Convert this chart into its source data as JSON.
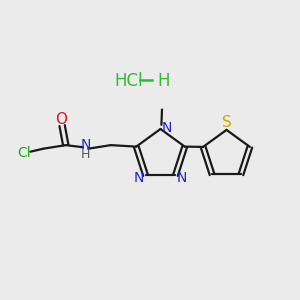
{
  "background_color": "#ebebeb",
  "hcl_color": "#33bb33",
  "hcl_fontsize": 12,
  "bond_color": "#1a1a1a",
  "bond_lw": 1.6,
  "atom_colors": {
    "Cl": "#22aa22",
    "O": "#cc2222",
    "N": "#2222cc",
    "S": "#ccaa00",
    "H": "#555555"
  }
}
